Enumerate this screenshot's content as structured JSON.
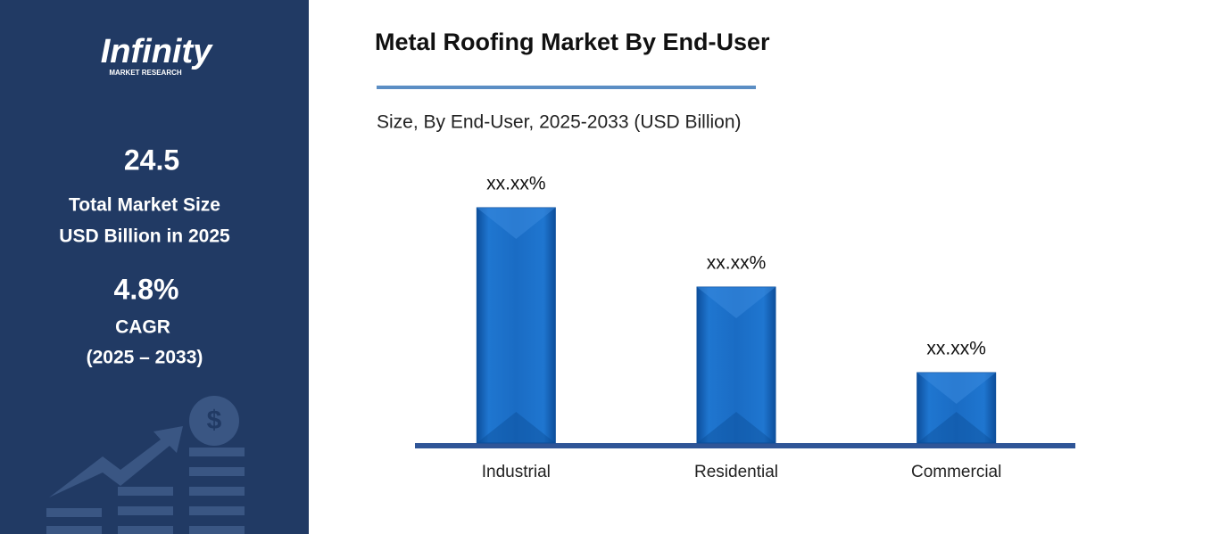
{
  "sidebar": {
    "logo": "Infinity",
    "logo_sub": "MARKET RESEARCH",
    "market_size": "24.5",
    "market_size_label_1": "Total Market Size",
    "market_size_label_2": "USD Billion in 2025",
    "cagr": "4.8%",
    "cagr_label": "CAGR",
    "cagr_period": "(2025 – 2033)"
  },
  "chart_data": {
    "type": "bar",
    "title": "Metal Roofing Market By End-User",
    "subtitle": "Size, By End-User, 2025-2033 (USD Billion)",
    "categories": [
      "Industrial",
      "Residential",
      "Commercial"
    ],
    "values": [
      264,
      175,
      79
    ],
    "value_labels": [
      "xx.xx%",
      "xx.xx%",
      "xx.xx%"
    ],
    "color": "#1a6cc4"
  }
}
